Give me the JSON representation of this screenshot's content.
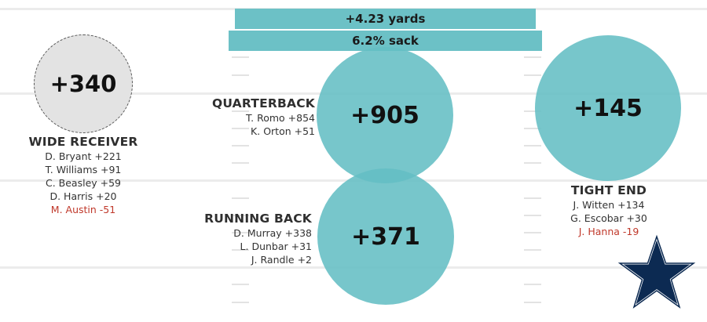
{
  "header": {
    "yards_label": "+4.23 yards",
    "sack_label": "6.2% sack"
  },
  "colors": {
    "accent_teal": "#6cc1c6",
    "neutral_grey": "#e3e3e3",
    "negative_red": "#c0392b",
    "star_navy": "#0c2a52"
  },
  "wide_receiver": {
    "total": "+340",
    "title": "WIDE RECEIVER",
    "players": [
      {
        "text": "D. Bryant +221",
        "negative": false
      },
      {
        "text": "T. Williams +91",
        "negative": false
      },
      {
        "text": "C. Beasley +59",
        "negative": false
      },
      {
        "text": "D. Harris +20",
        "negative": false
      },
      {
        "text": "M. Austin -51",
        "negative": true
      }
    ]
  },
  "quarterback": {
    "total": "+905",
    "title": "QUARTERBACK",
    "players": [
      {
        "text": "T. Romo +854",
        "negative": false
      },
      {
        "text": "K. Orton +51",
        "negative": false
      }
    ]
  },
  "running_back": {
    "total": "+371",
    "title": "RUNNING BACK",
    "players": [
      {
        "text": "D. Murray +338",
        "negative": false
      },
      {
        "text": "L. Dunbar +31",
        "negative": false
      },
      {
        "text": "J. Randle +2",
        "negative": false
      }
    ]
  },
  "tight_end": {
    "total": "+145",
    "title": "TIGHT END",
    "players": [
      {
        "text": "J. Witten +134",
        "negative": false
      },
      {
        "text": "G. Escobar +30",
        "negative": false
      },
      {
        "text": "J. Hanna -19",
        "negative": true
      }
    ]
  },
  "logo": {
    "icon": "star-icon"
  }
}
